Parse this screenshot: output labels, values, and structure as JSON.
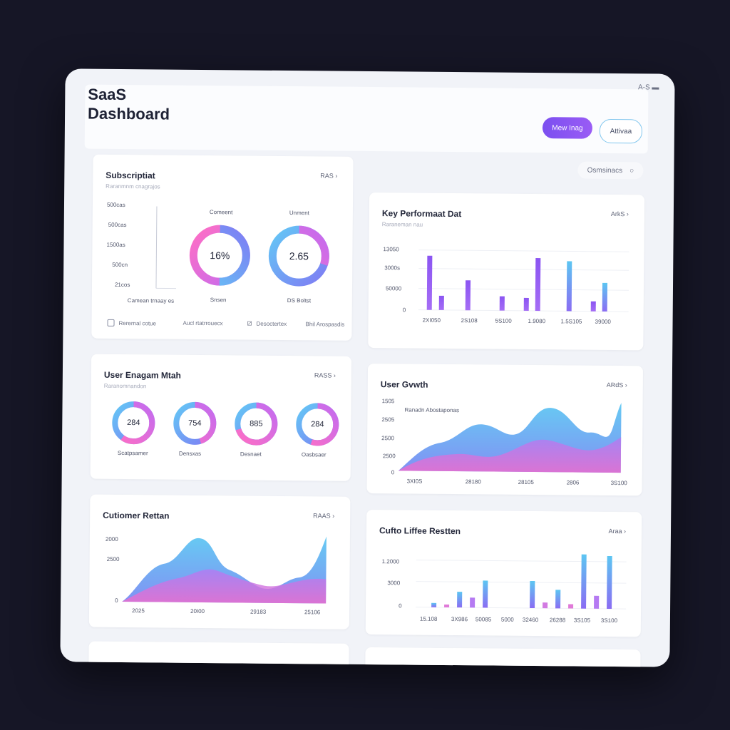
{
  "header": {
    "title_line1": "SaaS",
    "title_line2": "Dashboard",
    "top_right": "A-S",
    "primary_button": "Mew Inag",
    "secondary_button": "Attivaa"
  },
  "filter_chip": {
    "label": "Osmsinacs"
  },
  "subscription": {
    "title": "Subscriptiat",
    "subtitle": "Raranmnm cnagrajos",
    "link": "RAS",
    "axis_labels": [
      "500cas",
      "500cas",
      "1500as",
      "500cn",
      "21cos"
    ],
    "donut1": {
      "label_top": "Comeent",
      "value": "16%",
      "label_bottom": "Snsen",
      "fraction": 0.5
    },
    "donut2": {
      "label_top": "Unment",
      "value": "2.65",
      "label_bottom": "DS Boltst",
      "fraction": 0.3
    },
    "left_caption": "Camean trnaay es",
    "legend": [
      "Rerernal cotue",
      "Aucl rtatrrouecx",
      "Desoctertex",
      "Bhil Arospasdis"
    ]
  },
  "kpi": {
    "title": "Key Performaat Dat",
    "subtitle": "Raraneman nau",
    "link": "ArkS",
    "y_labels": [
      "13050",
      "3000s",
      "50000",
      "0"
    ],
    "x_labels": [
      "2XI050",
      "2S108",
      "5S100",
      "1.9080",
      "1.5S105",
      "39000"
    ]
  },
  "engagement": {
    "title": "User Enagam Mtah",
    "subtitle": "Raranomnandon",
    "link": "RASS",
    "donuts": [
      {
        "value": "284",
        "label": "Scatpsamer",
        "fraction": 0.6
      },
      {
        "value": "754",
        "label": "Densxas",
        "fraction": 0.45
      },
      {
        "value": "885",
        "label": "Desnaet",
        "fraction": 0.7
      },
      {
        "value": "284",
        "label": "Oasbsaer",
        "fraction": 0.55
      }
    ]
  },
  "user_growth": {
    "title": "User Gvwth",
    "link": "ARdS",
    "annotation": "Ranadn Abostaponas",
    "y_labels": [
      "1505",
      "2505",
      "2500",
      "2500",
      "0"
    ],
    "x_labels": [
      "3XI0S",
      "28180",
      "28105",
      "2806",
      "3S100"
    ]
  },
  "customer_retention": {
    "title": "Cutiomer Rettan",
    "link": "RAAS",
    "y_labels": [
      "2000",
      "2500",
      "0"
    ],
    "x_labels": [
      "2025",
      "20I00",
      "29183",
      "25106"
    ]
  },
  "cufto": {
    "title": "Cufto Liffee Restten",
    "link": "Araa",
    "y_labels": [
      "1.2000",
      "3000",
      "0"
    ],
    "x_labels": [
      "15.108",
      "3X986",
      "50085",
      "5000",
      "32460",
      "26288",
      "3S105",
      "3S100"
    ]
  }
}
